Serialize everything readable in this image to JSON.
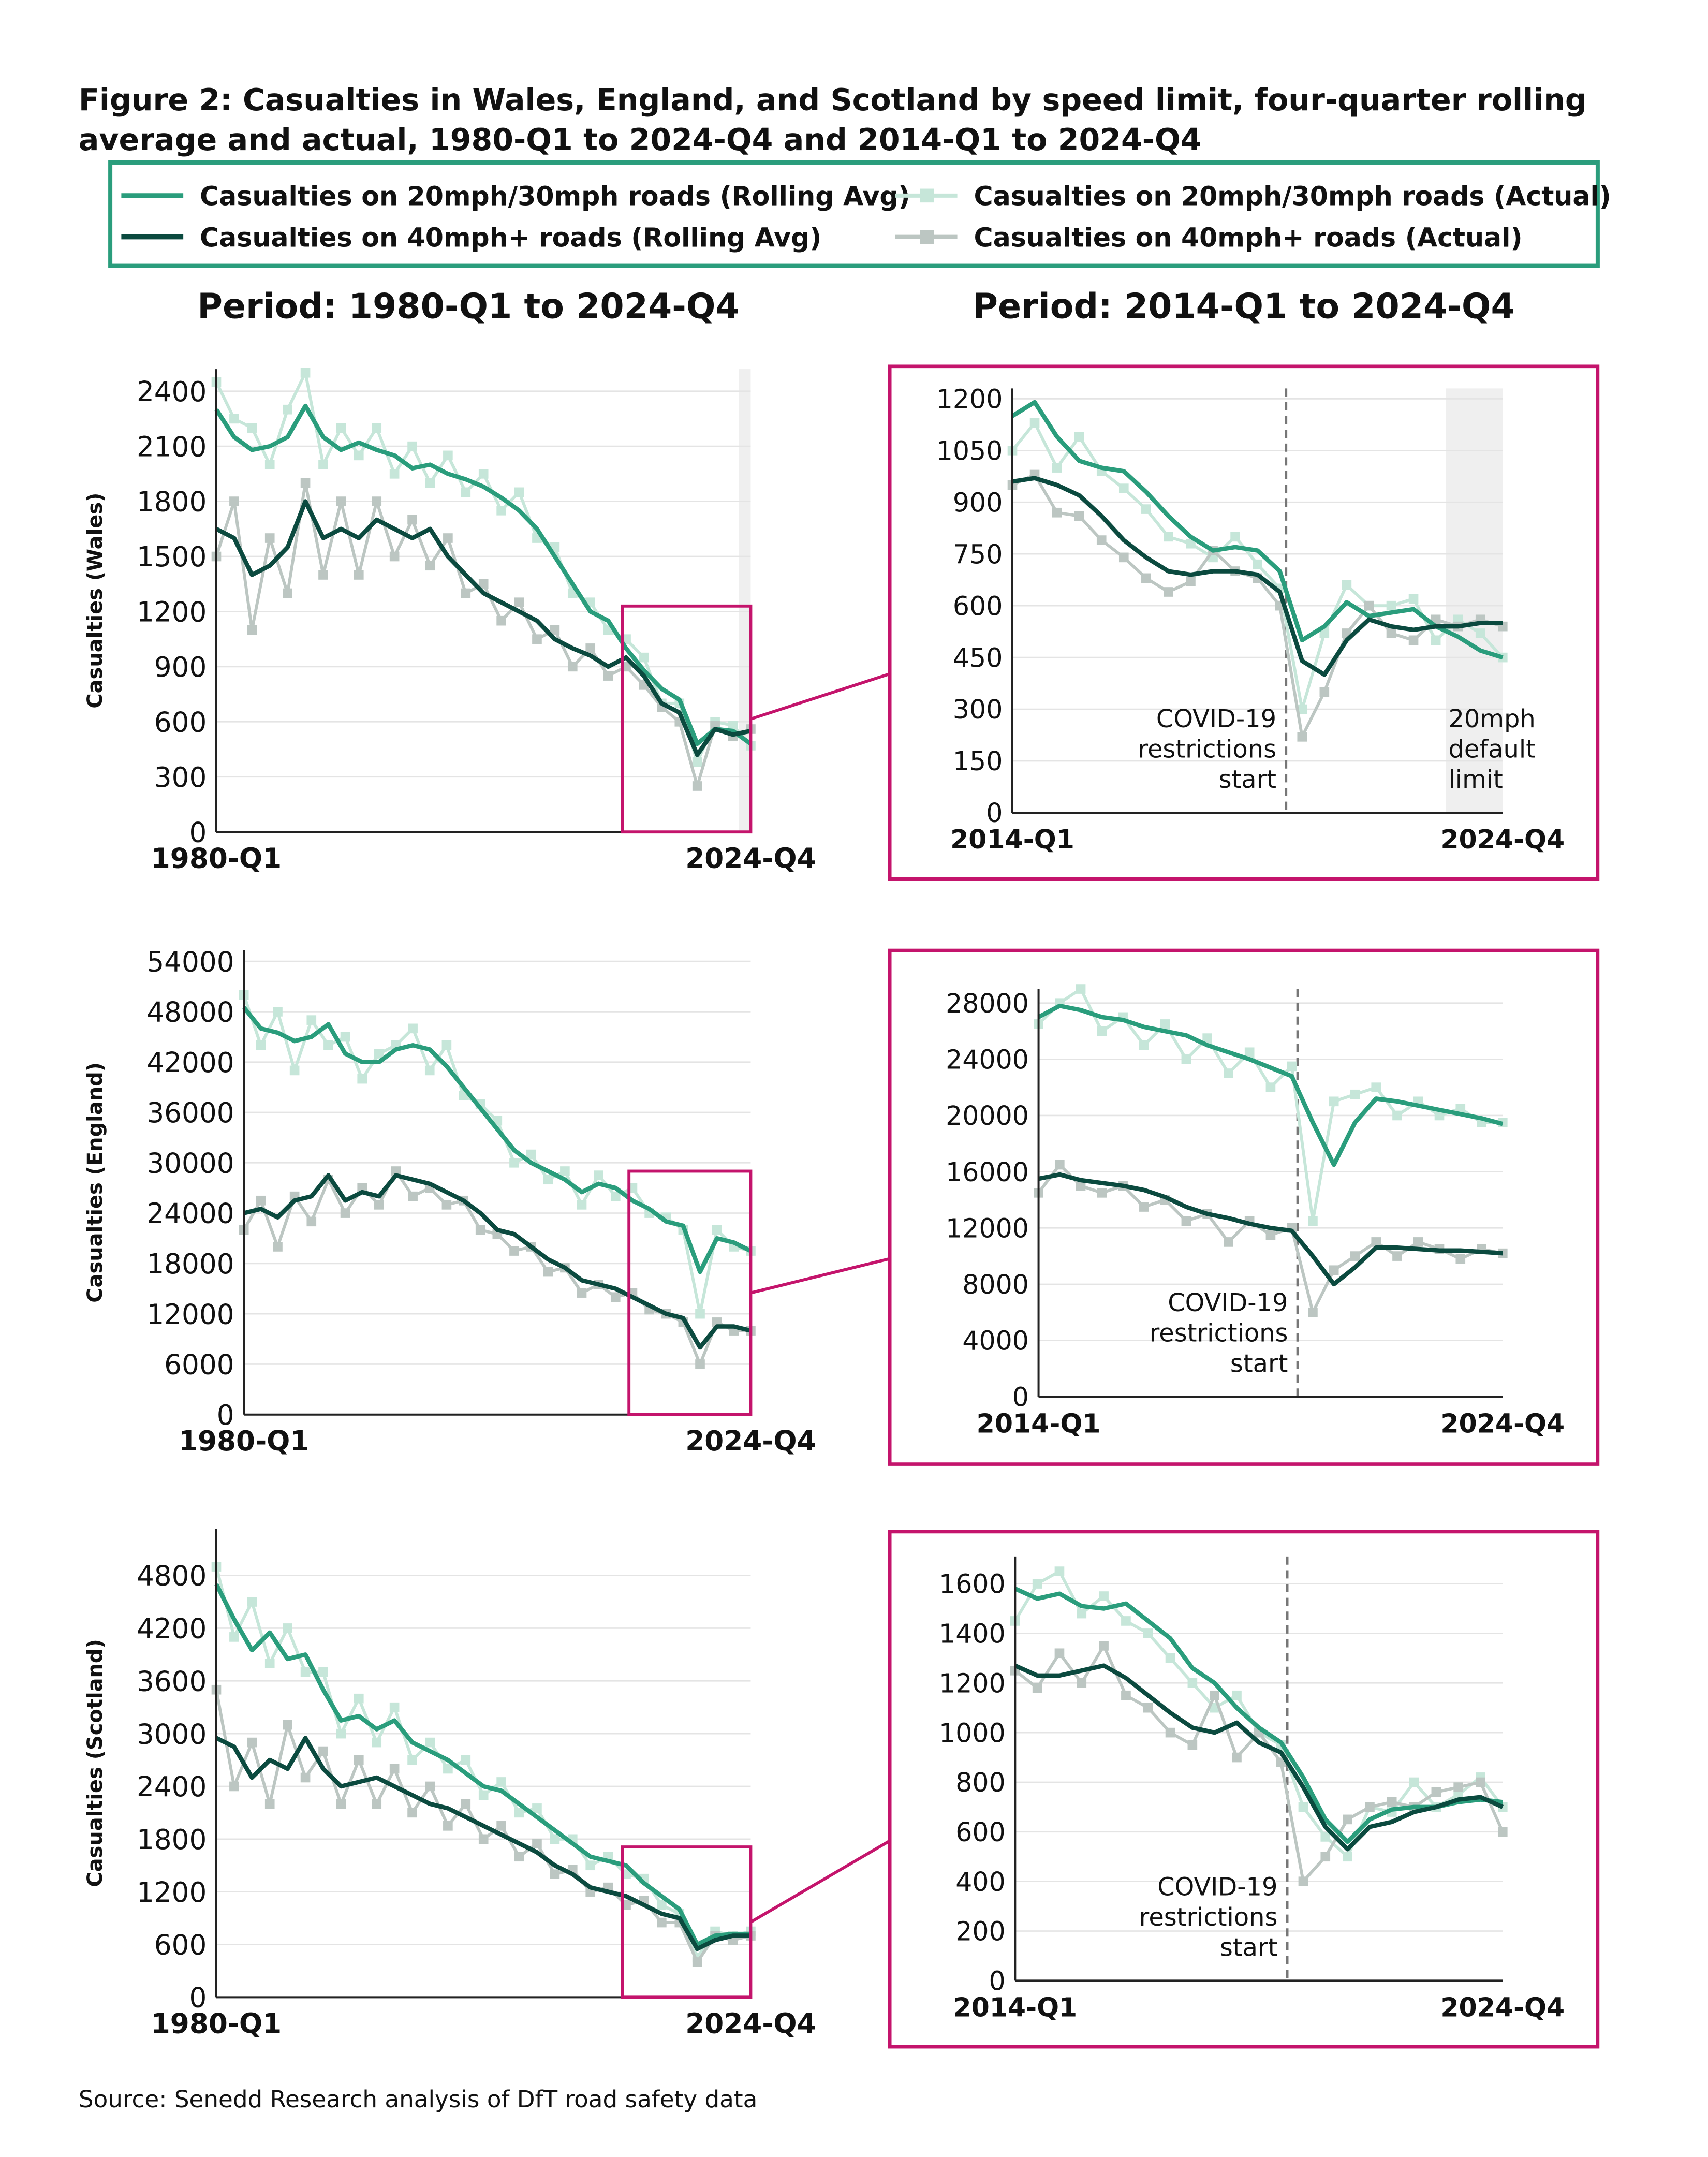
{
  "title": [
    "Figure 2: Casualties in Wales, England, and Scotland by speed limit, four-quarter rolling",
    "average and actual, 1980-Q1 to 2024-Q4 and 2014-Q1 to 2024-Q4"
  ],
  "headings": [
    "Period: 1980-Q1 to 2024-Q4",
    "Period: 2014-Q1 to 2024-Q4"
  ],
  "source": "Source: Senedd Research analysis of DfT road safety data",
  "chart_data": [
    {
      "type": "line",
      "ylabel": "Casualties (Wales)",
      "categories": [
        "1980-Q1",
        null,
        null,
        null,
        null,
        null,
        null,
        null,
        null,
        null,
        null,
        null,
        null,
        null,
        null,
        null,
        null,
        null,
        null,
        null,
        null,
        null,
        null,
        null,
        null,
        null,
        null,
        null,
        null,
        null,
        "2024-Q4"
      ],
      "series": [
        {
          "name": "Casualties on 20mph/30mph roads (Rolling Avg)",
          "color": "#2a9d7c",
          "values": [
            2300,
            2150,
            2080,
            2100,
            2150,
            2320,
            2150,
            2080,
            2120,
            2080,
            2050,
            1980,
            2000,
            1950,
            1920,
            1880,
            1820,
            1750,
            1650,
            1500,
            1350,
            1200,
            1150,
            1000,
            880,
            780,
            720,
            480,
            560,
            550,
            480
          ]
        },
        {
          "name": "Casualties on 40mph+ roads (Rolling Avg)",
          "color": "#0b4a3f",
          "values": [
            1650,
            1600,
            1400,
            1450,
            1550,
            1800,
            1600,
            1650,
            1600,
            1700,
            1650,
            1600,
            1650,
            1500,
            1400,
            1300,
            1250,
            1200,
            1150,
            1050,
            1000,
            960,
            900,
            950,
            850,
            700,
            650,
            420,
            560,
            530,
            550
          ]
        },
        {
          "name": "Casualties on 20mph/30mph roads (Actual)",
          "color": "#c6e6d9",
          "marker": "square",
          "values": [
            2450,
            2250,
            2200,
            2000,
            2300,
            2500,
            2000,
            2200,
            2050,
            2200,
            1950,
            2100,
            1900,
            2050,
            1850,
            1950,
            1750,
            1850,
            1600,
            1550,
            1300,
            1250,
            1100,
            1050,
            950,
            700,
            700,
            380,
            600,
            580,
            470
          ]
        },
        {
          "name": "Casualties on 40mph+ roads (Actual)",
          "color": "#bcc6c2",
          "marker": "square",
          "values": [
            1500,
            1800,
            1100,
            1600,
            1300,
            1900,
            1400,
            1800,
            1400,
            1800,
            1500,
            1700,
            1450,
            1600,
            1300,
            1350,
            1150,
            1250,
            1050,
            1100,
            900,
            1000,
            850,
            900,
            800,
            680,
            600,
            250,
            580,
            520,
            560
          ]
        }
      ],
      "ylim": [
        0,
        2520
      ],
      "yticks": [
        0,
        300,
        600,
        900,
        1200,
        1500,
        1800,
        2100,
        2400
      ],
      "grid": true
    },
    {
      "type": "line",
      "categories": [
        "2014-Q1",
        null,
        null,
        null,
        null,
        null,
        null,
        null,
        null,
        null,
        null,
        null,
        null,
        null,
        null,
        null,
        null,
        null,
        null,
        null,
        null,
        null,
        "2024-Q4"
      ],
      "series": [
        {
          "color": "#2a9d7c",
          "values": [
            1150,
            1190,
            1090,
            1020,
            1000,
            990,
            930,
            860,
            800,
            760,
            770,
            760,
            700,
            500,
            540,
            610,
            570,
            580,
            590,
            540,
            510,
            470,
            450
          ]
        },
        {
          "color": "#0b4a3f",
          "values": [
            960,
            970,
            950,
            920,
            860,
            790,
            740,
            700,
            690,
            700,
            700,
            690,
            640,
            440,
            400,
            500,
            560,
            540,
            530,
            540,
            540,
            550,
            550
          ]
        },
        {
          "color": "#c6e6d9",
          "marker": "square",
          "values": [
            1050,
            1130,
            1000,
            1090,
            990,
            940,
            880,
            800,
            780,
            740,
            800,
            720,
            650,
            300,
            520,
            660,
            600,
            600,
            620,
            500,
            560,
            520,
            450
          ]
        },
        {
          "color": "#bcc6c2",
          "marker": "square",
          "values": [
            950,
            980,
            870,
            860,
            790,
            740,
            680,
            640,
            670,
            760,
            700,
            680,
            600,
            220,
            350,
            520,
            600,
            520,
            500,
            560,
            540,
            560,
            540
          ]
        }
      ],
      "ylim": [
        0,
        1230
      ],
      "yticks": [
        0,
        150,
        300,
        450,
        600,
        750,
        900,
        1050,
        1200
      ],
      "grid": true,
      "annotations": [
        [
          "COVID-19",
          "restrictions",
          "start"
        ],
        [
          "20mph",
          "default",
          "limit"
        ]
      ]
    },
    {
      "type": "line",
      "ylabel": "Casualties (England)",
      "categories": [
        "1980-Q1",
        null,
        null,
        null,
        null,
        null,
        null,
        null,
        null,
        null,
        null,
        null,
        null,
        null,
        null,
        null,
        null,
        null,
        null,
        null,
        null,
        null,
        null,
        null,
        null,
        null,
        null,
        null,
        null,
        null,
        "2024-Q4"
      ],
      "series": [
        {
          "color": "#2a9d7c",
          "values": [
            48500,
            46000,
            45500,
            44500,
            45000,
            46500,
            43000,
            42000,
            42000,
            43500,
            44000,
            43500,
            41500,
            39000,
            36500,
            34000,
            31500,
            30000,
            29000,
            28000,
            26500,
            27500,
            27000,
            25500,
            24500,
            23000,
            22500,
            17000,
            21000,
            20500,
            19500
          ]
        },
        {
          "color": "#0b4a3f",
          "values": [
            24000,
            24500,
            23500,
            25500,
            26000,
            28500,
            25500,
            26500,
            26000,
            28500,
            28000,
            27500,
            26500,
            25500,
            24000,
            22000,
            21500,
            20000,
            18500,
            17500,
            16000,
            15500,
            15000,
            14000,
            13000,
            12000,
            11500,
            8000,
            10500,
            10500,
            10000
          ]
        },
        {
          "color": "#c6e6d9",
          "marker": "square",
          "values": [
            50000,
            44000,
            48000,
            41000,
            47000,
            44000,
            45000,
            40000,
            43000,
            44000,
            46000,
            41000,
            44000,
            38000,
            37000,
            35000,
            30000,
            31000,
            28000,
            29000,
            25000,
            28500,
            26000,
            27000,
            24000,
            23500,
            22000,
            12000,
            22000,
            20000,
            19500
          ]
        },
        {
          "color": "#bcc6c2",
          "marker": "square",
          "values": [
            22000,
            25500,
            20000,
            26000,
            23000,
            28000,
            24000,
            27000,
            25000,
            29000,
            26000,
            27000,
            25000,
            25500,
            22000,
            21500,
            19500,
            20000,
            17000,
            17500,
            14500,
            15500,
            14000,
            14500,
            12500,
            12000,
            11000,
            6000,
            11000,
            10000,
            10000
          ]
        }
      ],
      "ylim": [
        0,
        55300
      ],
      "yticks": [
        0,
        6000,
        12000,
        18000,
        24000,
        30000,
        36000,
        42000,
        48000,
        54000
      ],
      "grid": true
    },
    {
      "type": "line",
      "categories": [
        "2014-Q1",
        null,
        null,
        null,
        null,
        null,
        null,
        null,
        null,
        null,
        null,
        null,
        null,
        null,
        null,
        null,
        null,
        null,
        null,
        null,
        null,
        null,
        "2024-Q4"
      ],
      "series": [
        {
          "color": "#2a9d7c",
          "values": [
            27000,
            27800,
            27500,
            27000,
            26800,
            26300,
            26000,
            25700,
            25000,
            24500,
            24000,
            23400,
            22800,
            19500,
            16500,
            19500,
            21200,
            21000,
            20700,
            20400,
            20100,
            19800,
            19400
          ]
        },
        {
          "color": "#0b4a3f",
          "values": [
            15500,
            15800,
            15400,
            15200,
            15000,
            14700,
            14200,
            13500,
            13000,
            12700,
            12300,
            12000,
            11800,
            10000,
            8000,
            9200,
            10600,
            10600,
            10500,
            10400,
            10400,
            10300,
            10200
          ]
        },
        {
          "color": "#c6e6d9",
          "marker": "square",
          "values": [
            26500,
            28000,
            29000,
            26000,
            27000,
            25000,
            26500,
            24000,
            25500,
            23000,
            24500,
            22000,
            23500,
            12500,
            21000,
            21500,
            22000,
            20000,
            21000,
            20000,
            20500,
            19500,
            19500
          ]
        },
        {
          "color": "#bcc6c2",
          "marker": "square",
          "values": [
            14500,
            16500,
            15000,
            14500,
            15000,
            13500,
            14000,
            12500,
            13000,
            11000,
            12500,
            11500,
            12000,
            6000,
            9000,
            10000,
            11000,
            10000,
            11000,
            10500,
            9800,
            10500,
            10200
          ]
        }
      ],
      "ylim": [
        0,
        29000
      ],
      "yticks": [
        0,
        4000,
        8000,
        12000,
        16000,
        20000,
        24000,
        28000
      ],
      "grid": true,
      "annotations": [
        [
          "COVID-19",
          "restrictions",
          "start"
        ]
      ]
    },
    {
      "type": "line",
      "ylabel": "Casualties (Scotland)",
      "categories": [
        "1980-Q1",
        null,
        null,
        null,
        null,
        null,
        null,
        null,
        null,
        null,
        null,
        null,
        null,
        null,
        null,
        null,
        null,
        null,
        null,
        null,
        null,
        null,
        null,
        null,
        null,
        null,
        null,
        null,
        null,
        null,
        "2024-Q4"
      ],
      "series": [
        {
          "color": "#2a9d7c",
          "values": [
            4700,
            4300,
            3950,
            4150,
            3850,
            3900,
            3500,
            3150,
            3200,
            3050,
            3150,
            2900,
            2800,
            2700,
            2550,
            2400,
            2350,
            2200,
            2050,
            1900,
            1750,
            1600,
            1550,
            1500,
            1300,
            1150,
            1000,
            600,
            700,
            720,
            720
          ]
        },
        {
          "color": "#0b4a3f",
          "values": [
            2950,
            2850,
            2500,
            2700,
            2600,
            2950,
            2600,
            2400,
            2450,
            2500,
            2400,
            2300,
            2200,
            2150,
            2050,
            1950,
            1850,
            1750,
            1650,
            1500,
            1400,
            1250,
            1200,
            1150,
            1050,
            950,
            900,
            550,
            650,
            700,
            700
          ]
        },
        {
          "color": "#c6e6d9",
          "marker": "square",
          "values": [
            4900,
            4100,
            4500,
            3800,
            4200,
            3700,
            3700,
            3000,
            3400,
            2900,
            3300,
            2700,
            2900,
            2600,
            2700,
            2300,
            2450,
            2100,
            2150,
            1800,
            1800,
            1500,
            1600,
            1400,
            1350,
            1050,
            950,
            450,
            750,
            700,
            750
          ]
        },
        {
          "color": "#bcc6c2",
          "marker": "square",
          "values": [
            3500,
            2400,
            2900,
            2200,
            3100,
            2500,
            2800,
            2200,
            2700,
            2200,
            2600,
            2100,
            2400,
            1950,
            2200,
            1800,
            1950,
            1600,
            1750,
            1400,
            1450,
            1200,
            1250,
            1050,
            1100,
            850,
            850,
            400,
            700,
            650,
            700
          ]
        }
      ],
      "ylim": [
        0,
        5330
      ],
      "yticks": [
        0,
        600,
        1200,
        1800,
        2400,
        3000,
        3600,
        4200,
        4800
      ],
      "grid": true
    },
    {
      "type": "line",
      "categories": [
        "2014-Q1",
        null,
        null,
        null,
        null,
        null,
        null,
        null,
        null,
        null,
        null,
        null,
        null,
        null,
        null,
        null,
        null,
        null,
        null,
        null,
        null,
        null,
        "2024-Q4"
      ],
      "series": [
        {
          "color": "#2a9d7c",
          "values": [
            1580,
            1540,
            1560,
            1510,
            1500,
            1520,
            1450,
            1380,
            1260,
            1200,
            1100,
            1020,
            960,
            820,
            650,
            560,
            650,
            690,
            700,
            700,
            720,
            730,
            720
          ]
        },
        {
          "color": "#0b4a3f",
          "values": [
            1270,
            1230,
            1230,
            1250,
            1270,
            1220,
            1150,
            1080,
            1020,
            1000,
            1040,
            960,
            920,
            780,
            620,
            530,
            620,
            640,
            680,
            700,
            730,
            740,
            700
          ]
        },
        {
          "color": "#c6e6d9",
          "marker": "square",
          "values": [
            1450,
            1600,
            1650,
            1480,
            1550,
            1450,
            1400,
            1300,
            1200,
            1100,
            1150,
            1000,
            950,
            700,
            580,
            500,
            700,
            680,
            800,
            700,
            750,
            820,
            700
          ]
        },
        {
          "color": "#bcc6c2",
          "marker": "square",
          "values": [
            1250,
            1180,
            1320,
            1200,
            1350,
            1150,
            1100,
            1000,
            950,
            1150,
            900,
            1000,
            880,
            400,
            500,
            650,
            700,
            720,
            700,
            760,
            780,
            800,
            600
          ]
        }
      ],
      "ylim": [
        0,
        1710
      ],
      "yticks": [
        0,
        200,
        400,
        600,
        800,
        1000,
        1200,
        1400,
        1600
      ],
      "grid": true,
      "annotations": [
        [
          "COVID-19",
          "restrictions",
          "start"
        ]
      ]
    }
  ]
}
